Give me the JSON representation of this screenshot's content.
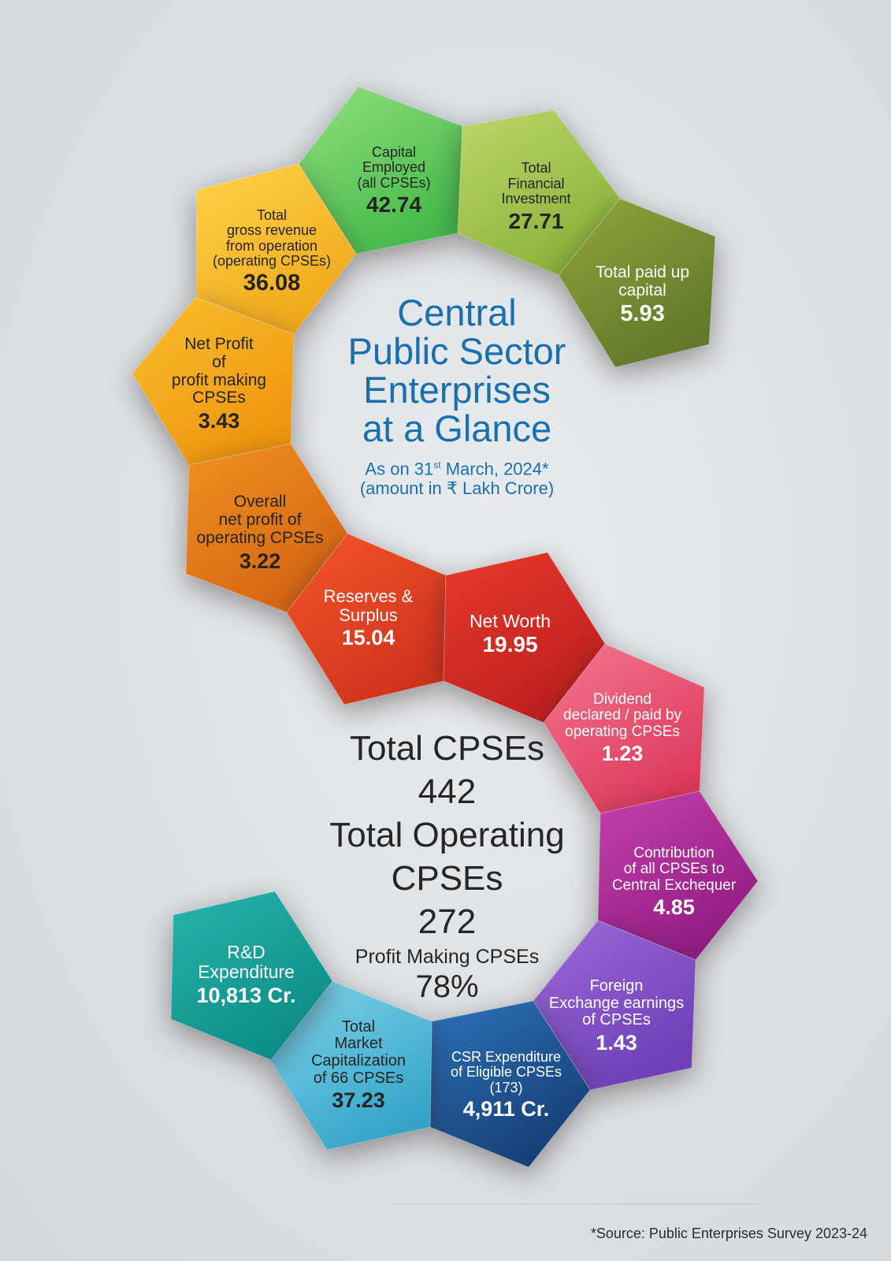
{
  "title_lines": [
    "Central",
    "Public Sector",
    "Enterprises",
    "at a Glance"
  ],
  "as_on": {
    "prefix": "As on 31",
    "sup": "st",
    "suffix": " March, 2024*"
  },
  "amount_note": "(amount in  ₹ Lakh Crore)",
  "tiles": [
    {
      "id": "capital-employed",
      "label_lines": [
        "Capital",
        "Employed",
        "(all CPSEs)"
      ],
      "value": "42.74",
      "color_light": "#92e07e",
      "color_dark": "#45b94b",
      "text": "dark"
    },
    {
      "id": "total-financial-investment",
      "label_lines": [
        "Total",
        "Financial",
        "Investment"
      ],
      "value": "27.71",
      "color_light": "#bdd66a",
      "color_dark": "#8bb23b",
      "text": "dark"
    },
    {
      "id": "total-paid-up-capital",
      "label_lines": [
        "Total paid up",
        "capital"
      ],
      "value": "5.93",
      "color_light": "#8fa53d",
      "color_dark": "#63782a",
      "text": "light"
    },
    {
      "id": "total-gross-revenue",
      "label_lines": [
        "Total",
        "gross revenue",
        "from operation",
        "(operating CPSEs)"
      ],
      "value": "36.08",
      "color_light": "#ffd34a",
      "color_dark": "#f0a81a",
      "text": "dark"
    },
    {
      "id": "net-profit-profit-making",
      "label_lines": [
        "Net Profit",
        "of",
        "profit making",
        "CPSEs"
      ],
      "value": "3.43",
      "color_light": "#f9bf2f",
      "color_dark": "#ef960f",
      "text": "dark"
    },
    {
      "id": "overall-net-profit",
      "label_lines": [
        "Overall",
        "net profit of",
        "operating CPSEs"
      ],
      "value": "3.22",
      "color_light": "#f0921f",
      "color_dark": "#d56414",
      "text": "dark"
    },
    {
      "id": "reserves-surplus",
      "label_lines": [
        "Reserves &",
        "Surplus"
      ],
      "value": "15.04",
      "color_light": "#f2562a",
      "color_dark": "#d1321d",
      "text": "light"
    },
    {
      "id": "net-worth",
      "label_lines": [
        "Net Worth"
      ],
      "value": "19.95",
      "color_light": "#e73a2c",
      "color_dark": "#be1f1e",
      "text": "light"
    },
    {
      "id": "dividend",
      "label_lines": [
        "Dividend",
        "declared / paid by",
        "operating CPSEs"
      ],
      "value": "1.23",
      "color_light": "#f4778d",
      "color_dark": "#dd3a5c",
      "text": "light"
    },
    {
      "id": "contribution-exchequer",
      "label_lines": [
        "Contribution",
        "of all CPSEs to",
        "Central Exchequer"
      ],
      "value": "4.85",
      "color_light": "#c640ab",
      "color_dark": "#8f1c82",
      "text": "light"
    },
    {
      "id": "foreign-exchange",
      "label_lines": [
        "Foreign",
        "Exchange earnings",
        "of CPSEs"
      ],
      "value": "1.43",
      "color_light": "#9c6ad9",
      "color_dark": "#6e3fb6",
      "text": "light"
    },
    {
      "id": "csr-expenditure",
      "label_lines": [
        "CSR Expenditure",
        "of Eligible CPSEs",
        "(173)"
      ],
      "value": "4,911 Cr.",
      "color_light": "#2c72b8",
      "color_dark": "#163e76",
      "text": "light"
    },
    {
      "id": "market-capitalization",
      "label_lines": [
        "Total",
        "Market",
        "Capitalization",
        "of 66 CPSEs"
      ],
      "value": "37.23",
      "color_light": "#84d6ec",
      "color_dark": "#33a4c8",
      "text": "dark"
    },
    {
      "id": "rd-expenditure",
      "label_lines": [
        "R&D",
        "Expenditure"
      ],
      "value": "10,813 Cr.",
      "color_light": "#27b5ad",
      "color_dark": "#0d8b86",
      "text": "light"
    }
  ],
  "totals": {
    "total_cpses_label": "Total CPSEs",
    "total_cpses_value": "442",
    "operating_label_1": "Total Operating",
    "operating_label_2": "CPSEs",
    "operating_value": "272",
    "profit_making_label": "Profit Making CPSEs",
    "profit_making_value": "78%"
  },
  "source": "*Source: Public Enterprises Survey 2023-24"
}
